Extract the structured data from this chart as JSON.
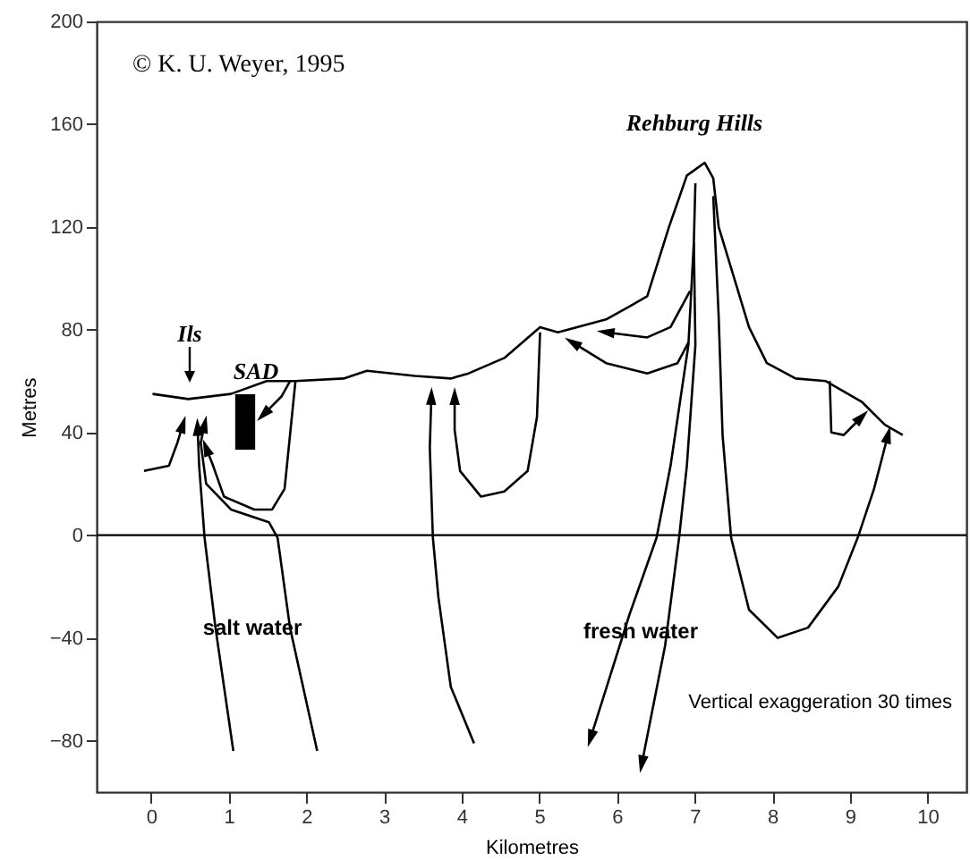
{
  "chart_data": {
    "type": "line",
    "xlabel": "Kilometres",
    "ylabel": "Metres",
    "xlim": [
      -0.7,
      10.5
    ],
    "xticks": [
      0,
      1,
      2,
      3,
      4,
      5,
      6,
      7,
      8,
      9,
      10
    ],
    "ylim": [
      -100,
      200
    ],
    "yticks": [
      -80,
      -40,
      0,
      40,
      80,
      120,
      160,
      200
    ],
    "grid": false,
    "marker": "none",
    "line_style": "solid",
    "ref_lines": [
      {
        "axis": "y",
        "value": 0,
        "color": "#000000"
      }
    ],
    "annotations": [
      "© K. U. Weyer, 1995",
      "Vertical exaggeration 30 times",
      "Ils",
      "SAD",
      "Rehburg Hills",
      "salt water",
      "fresh water"
    ],
    "series": [
      {
        "color": "#000000",
        "x": [
          0.02,
          0.48,
          1.03,
          1.49,
          1.86,
          2.48,
          2.78,
          3.4,
          3.86,
          4.09,
          4.55,
          5.01,
          5.24,
          5.86,
          6.16,
          6.39,
          6.67,
          6.9,
          7.13,
          7.24,
          7.31,
          7.54,
          7.7,
          7.93,
          8.3,
          8.69,
          9.15,
          9.45,
          9.68
        ],
        "values": [
          55,
          53,
          55,
          60,
          60,
          61,
          64,
          62,
          61,
          63,
          69,
          81,
          79,
          84,
          89,
          93,
          120,
          140,
          145,
          139,
          120,
          97,
          81,
          67,
          61,
          60,
          52,
          43,
          39
        ]
      },
      {
        "color": "#000000",
        "x": [
          -0.09,
          0.23,
          0.34,
          0.41
        ],
        "values": [
          25,
          27,
          36,
          43
        ]
      },
      {
        "color": "#000000",
        "x": [
          1.06,
          0.83,
          0.69,
          0.62,
          0.6
        ],
        "values": [
          -84,
          -36,
          -1,
          27,
          42
        ]
      },
      {
        "color": "#000000",
        "x": [
          2.14,
          1.79,
          1.63,
          1.52,
          1.03,
          0.71,
          0.64,
          0.69
        ],
        "values": [
          -84,
          -36,
          -1,
          5,
          10,
          20,
          36,
          43
        ]
      },
      {
        "color": "#000000",
        "x": [
          1.86,
          1.79,
          1.72,
          1.56,
          1.33,
          0.94,
          0.8,
          0.71
        ],
        "values": [
          60,
          39,
          18,
          10,
          10,
          15,
          27,
          34
        ]
      },
      {
        "color": "#000000",
        "x": [
          1.79,
          1.68,
          1.45
        ],
        "values": [
          60,
          54,
          47
        ]
      },
      {
        "color": "#000000",
        "x": [
          4.16,
          3.86,
          3.7,
          3.63,
          3.59,
          3.61
        ],
        "values": [
          -81,
          -59,
          -24,
          -1,
          34,
          54
        ]
      },
      {
        "color": "#000000",
        "x": [
          5.01,
          4.97,
          4.85,
          4.55,
          4.25,
          3.98,
          3.91,
          3.91
        ],
        "values": [
          79,
          46,
          25,
          17,
          15,
          25,
          41,
          54
        ]
      },
      {
        "color": "#000000",
        "x": [
          7.01,
          6.99,
          6.92,
          6.69,
          6.51,
          6.16,
          5.66
        ],
        "values": [
          137,
          114,
          74,
          27,
          -1,
          -31,
          -79
        ]
      },
      {
        "color": "#000000",
        "x": [
          6.99,
          7.01,
          6.9,
          6.8,
          6.62,
          6.32
        ],
        "values": [
          114,
          74,
          27,
          -1,
          -43,
          -89
        ]
      },
      {
        "color": "#000000",
        "x": [
          7.24,
          7.31,
          7.36,
          7.47,
          7.7,
          8.07,
          8.46,
          8.85,
          9.1,
          9.31,
          9.49
        ],
        "values": [
          132,
          85,
          39,
          -1,
          -29,
          -40,
          -36,
          -20,
          -1,
          18,
          39
        ]
      },
      {
        "color": "#000000",
        "x": [
          6.92,
          6.78,
          6.39,
          5.86,
          5.43
        ],
        "values": [
          75,
          67,
          63,
          67,
          75
        ]
      },
      {
        "color": "#000000",
        "x": [
          6.94,
          6.69,
          6.39,
          5.86
        ],
        "values": [
          95,
          81,
          77,
          79
        ]
      },
      {
        "color": "#000000",
        "x": [
          8.74,
          8.76,
          8.92,
          9.15
        ],
        "values": [
          60,
          40,
          39,
          46
        ]
      }
    ]
  }
}
